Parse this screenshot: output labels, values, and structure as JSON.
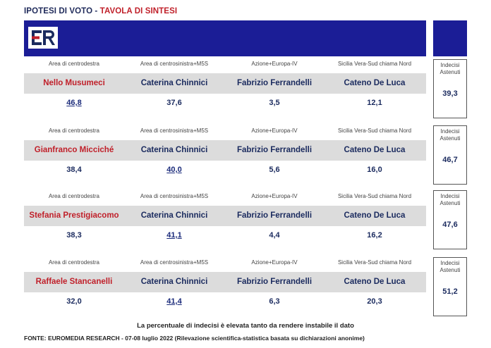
{
  "header": {
    "title_part1": "IPOTESI DI VOTO - ",
    "title_part2": "TAVOLA DI SINTESI"
  },
  "logo": {
    "text": "ER"
  },
  "colors": {
    "banner": "#1b1d96",
    "accent_red": "#c0202a",
    "name_navy": "#1a2a5e",
    "row_bg": "#dcdcdc"
  },
  "chart_data": {
    "type": "table",
    "title": "TAVOLA DI SINTESI",
    "areas": [
      "Area di centrodestra",
      "Area di centrosinistra+M5S",
      "Azione+Europa-IV",
      "Sicilia Vera-Sud chiama Nord"
    ],
    "undecided_label_line1": "Indecisi",
    "undecided_label_line2": "Astenuti",
    "scenarios": [
      {
        "candidates": [
          "Nello Musumeci",
          "Caterina Chinnici",
          "Fabrizio Ferrandelli",
          "Cateno De Luca"
        ],
        "values": [
          "46,8",
          "37,6",
          "3,5",
          "12,1"
        ],
        "leader_index": 0,
        "undecided": "39,3"
      },
      {
        "candidates": [
          "Gianfranco Micciché",
          "Caterina Chinnici",
          "Fabrizio Ferrandelli",
          "Cateno De Luca"
        ],
        "values": [
          "38,4",
          "40,0",
          "5,6",
          "16,0"
        ],
        "leader_index": 1,
        "undecided": "46,7"
      },
      {
        "candidates": [
          "Stefania Prestigiacomo",
          "Caterina Chinnici",
          "Fabrizio Ferrandelli",
          "Cateno De Luca"
        ],
        "values": [
          "38,3",
          "41,1",
          "4,4",
          "16,2"
        ],
        "leader_index": 1,
        "undecided": "47,6"
      },
      {
        "candidates": [
          "Raffaele Stancanelli",
          "Caterina Chinnici",
          "Fabrizio Ferrandelli",
          "Cateno De Luca"
        ],
        "values": [
          "32,0",
          "41,4",
          "6,3",
          "20,3"
        ],
        "leader_index": 1,
        "undecided": "51,2"
      }
    ]
  },
  "footer": {
    "note": "La percentuale di indecisi è elevata tanto da rendere instabile il dato",
    "source": "FONTE: EUROMEDIA RESEARCH - 07-08 luglio 2022 (Rilevazione scientifica-statistica basata su dichiarazioni anonime)"
  }
}
